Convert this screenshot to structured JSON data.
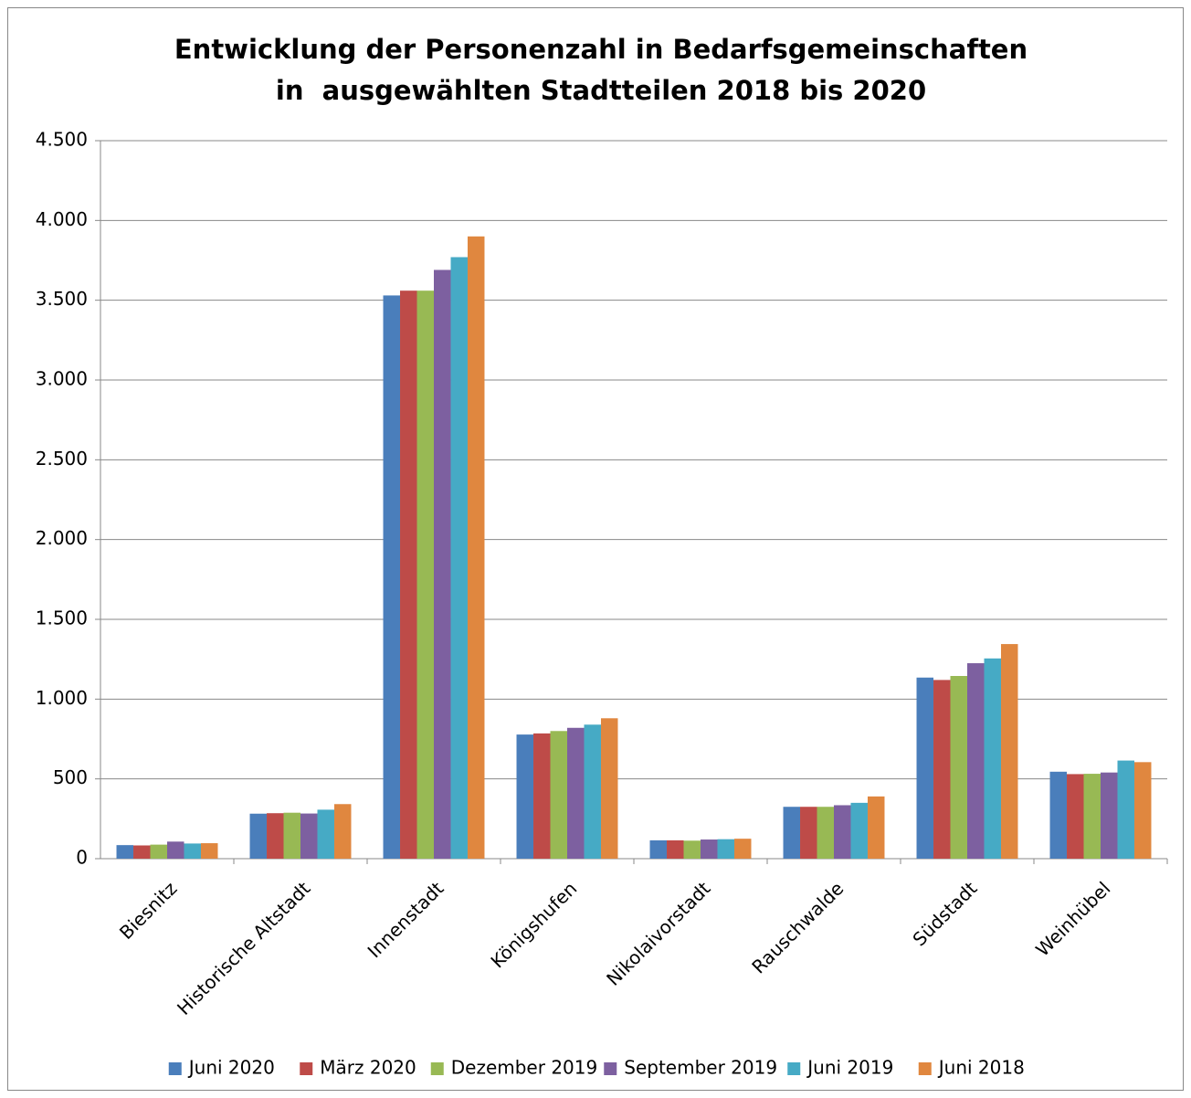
{
  "chart_data": {
    "type": "bar",
    "title": [
      "Entwicklung der Personenzahl in Bedarfsgemeinschaften",
      "in  ausgewählten Stadtteilen 2018 bis 2020"
    ],
    "categories": [
      "Biesnitz",
      "Historische Altstadt",
      "Innenstadt",
      "Königshufen",
      "Nikolaivorstadt",
      "Rauschwalde",
      "Südstadt",
      "Weinhübel"
    ],
    "series": [
      {
        "name": "Juni 2020",
        "color": "#4a7ebb",
        "values": [
          85,
          282,
          3530,
          778,
          115,
          325,
          1135,
          545
        ]
      },
      {
        "name": "März 2020",
        "color": "#be4b48",
        "values": [
          83,
          285,
          3560,
          785,
          115,
          325,
          1120,
          530
        ]
      },
      {
        "name": "Dezember 2019",
        "color": "#98b954",
        "values": [
          88,
          288,
          3560,
          800,
          113,
          325,
          1145,
          532
        ]
      },
      {
        "name": "September 2019",
        "color": "#7d60a0",
        "values": [
          107,
          283,
          3690,
          820,
          120,
          335,
          1225,
          540
        ]
      },
      {
        "name": "Juni 2019",
        "color": "#46aac5",
        "values": [
          95,
          307,
          3770,
          840,
          122,
          350,
          1255,
          615
        ]
      },
      {
        "name": "Juni 2018",
        "color": "#e0873f",
        "values": [
          97,
          342,
          3900,
          880,
          125,
          390,
          1345,
          605
        ]
      }
    ],
    "ylim": [
      0,
      4500
    ],
    "yticks": [
      0,
      500,
      {
        "value": 1000,
        "label": "1.000"
      },
      {
        "value": 1500,
        "label": "1.500"
      },
      {
        "value": 2000,
        "label": "2.000"
      },
      {
        "value": 2500,
        "label": "2.500"
      },
      {
        "value": 3000,
        "label": "3.000"
      },
      {
        "value": 3500,
        "label": "3.500"
      },
      {
        "value": 4000,
        "label": "4.000"
      },
      {
        "value": 4500,
        "label": "4.500"
      }
    ],
    "grid": true,
    "legend": "bottom"
  }
}
